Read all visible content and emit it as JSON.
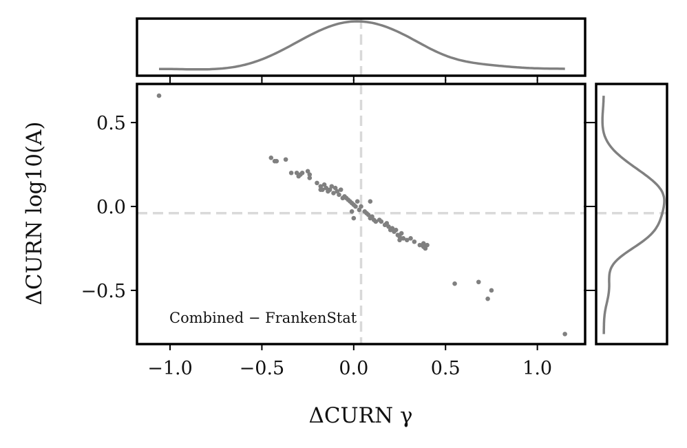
{
  "chart_data": {
    "type": "scatter",
    "title": "",
    "xlabel": "ΔCURN γ",
    "ylabel": "ΔCURN log10(A)",
    "annotation": "Combined − FrankenStat",
    "xlim": [
      -1.18,
      1.26
    ],
    "ylim": [
      -0.82,
      0.73
    ],
    "xticks": [
      -1.0,
      -0.5,
      0.0,
      0.5,
      1.0
    ],
    "xtick_labels": [
      "−1.0",
      "−0.5",
      "0.0",
      "0.5",
      "1.0"
    ],
    "yticks": [
      -0.5,
      0.0,
      0.5
    ],
    "ytick_labels": [
      "−0.5",
      "0.0",
      "0.5"
    ],
    "reference_lines": {
      "x": 0.04,
      "y": -0.04
    },
    "grid": false,
    "marginals": [
      "top: density of ΔCURN γ",
      "right: density of ΔCURN log10(A)"
    ],
    "colors": {
      "points": "#808080",
      "density": "#808080",
      "reference": "#d9d9d9",
      "frame": "#000000"
    },
    "series": [
      {
        "points": [
          [
            -1.06,
            0.66
          ],
          [
            -0.45,
            0.29
          ],
          [
            -0.43,
            0.27
          ],
          [
            -0.42,
            0.27
          ],
          [
            -0.37,
            0.28
          ],
          [
            -0.34,
            0.2
          ],
          [
            -0.31,
            0.2
          ],
          [
            -0.3,
            0.18
          ],
          [
            -0.29,
            0.19
          ],
          [
            -0.28,
            0.2
          ],
          [
            -0.25,
            0.21
          ],
          [
            -0.24,
            0.19
          ],
          [
            -0.24,
            0.17
          ],
          [
            -0.2,
            0.14
          ],
          [
            -0.18,
            0.12
          ],
          [
            -0.18,
            0.1
          ],
          [
            -0.17,
            0.1
          ],
          [
            -0.16,
            0.13
          ],
          [
            -0.15,
            0.11
          ],
          [
            -0.14,
            0.09
          ],
          [
            -0.13,
            0.1
          ],
          [
            -0.12,
            0.12
          ],
          [
            -0.11,
            0.08
          ],
          [
            -0.1,
            0.11
          ],
          [
            -0.09,
            0.09
          ],
          [
            -0.08,
            0.07
          ],
          [
            -0.07,
            0.1
          ],
          [
            -0.06,
            0.05
          ],
          [
            -0.05,
            0.06
          ],
          [
            -0.04,
            0.05
          ],
          [
            -0.03,
            0.04
          ],
          [
            -0.02,
            0.03
          ],
          [
            -0.01,
            0.02
          ],
          [
            0.0,
            0.01
          ],
          [
            0.01,
            0.0
          ],
          [
            0.02,
            0.03
          ],
          [
            0.03,
            -0.02
          ],
          [
            0.04,
            0.0
          ],
          [
            -0.01,
            -0.03
          ],
          [
            0.06,
            -0.03
          ],
          [
            0.07,
            -0.04
          ],
          [
            0.08,
            -0.05
          ],
          [
            0.09,
            -0.07
          ],
          [
            0.1,
            -0.06
          ],
          [
            0.11,
            -0.08
          ],
          [
            0.12,
            -0.09
          ],
          [
            0.14,
            -0.08
          ],
          [
            0.15,
            -0.09
          ],
          [
            0.17,
            -0.11
          ],
          [
            0.18,
            -0.1
          ],
          [
            0.19,
            -0.12
          ],
          [
            0.2,
            -0.14
          ],
          [
            0.21,
            -0.13
          ],
          [
            0.22,
            -0.15
          ],
          [
            0.23,
            -0.14
          ],
          [
            0.24,
            -0.17
          ],
          [
            0.25,
            -0.18
          ],
          [
            0.25,
            -0.2
          ],
          [
            0.26,
            -0.16
          ],
          [
            0.27,
            -0.19
          ],
          [
            0.29,
            -0.2
          ],
          [
            0.31,
            -0.19
          ],
          [
            0.33,
            -0.21
          ],
          [
            0.36,
            -0.23
          ],
          [
            0.38,
            -0.22
          ],
          [
            0.38,
            -0.24
          ],
          [
            0.39,
            -0.25
          ],
          [
            0.4,
            -0.23
          ],
          [
            0.09,
            0.03
          ],
          [
            0.0,
            -0.07
          ],
          [
            0.55,
            -0.46
          ],
          [
            0.68,
            -0.45
          ],
          [
            0.73,
            -0.55
          ],
          [
            0.75,
            -0.5
          ],
          [
            1.15,
            -0.76
          ]
        ]
      }
    ]
  }
}
